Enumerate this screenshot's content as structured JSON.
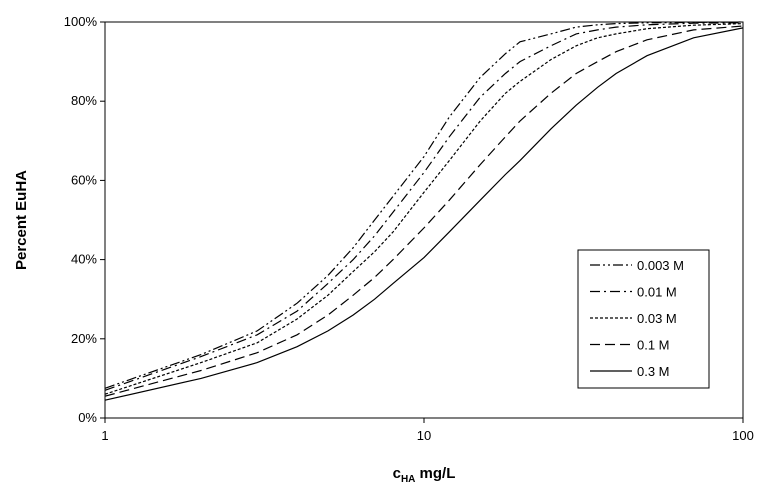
{
  "chart_data": {
    "type": "line",
    "title": "",
    "xlabel": {
      "main": "c",
      "sub": "HA",
      "rest": " mg/L"
    },
    "ylabel": "Percent EuHA",
    "x_scale": "log",
    "xlim": [
      1,
      100
    ],
    "ylim": [
      0,
      100
    ],
    "x_ticks": [
      1,
      10,
      100
    ],
    "x_tick_labels": [
      "1",
      "10",
      "100"
    ],
    "y_ticks": [
      0,
      20,
      40,
      60,
      80,
      100
    ],
    "y_tick_labels": [
      "0%",
      "20%",
      "40%",
      "60%",
      "80%",
      "100%"
    ],
    "grid": false,
    "legend_position": "center-right",
    "series": [
      {
        "name": "0.003 M",
        "dash": "dash-dot-dot",
        "x": [
          1,
          2,
          3,
          4,
          5,
          6,
          7,
          8,
          10,
          12,
          15,
          18,
          20,
          25,
          30,
          35,
          40,
          50,
          70,
          100
        ],
        "y": [
          7.5,
          16,
          22,
          29,
          36,
          43,
          50,
          56,
          66,
          76,
          86,
          92,
          95,
          97,
          98.7,
          99.3,
          99.6,
          99.8,
          99.9,
          100
        ]
      },
      {
        "name": "0.01 M",
        "dash": "dash-dot",
        "x": [
          1,
          2,
          3,
          4,
          5,
          6,
          7,
          8,
          10,
          12,
          15,
          18,
          20,
          25,
          30,
          35,
          40,
          50,
          70,
          100
        ],
        "y": [
          7,
          15.5,
          21,
          27,
          34,
          40,
          46,
          52,
          62,
          71,
          81,
          87,
          90,
          94,
          97,
          98,
          98.7,
          99.3,
          99.7,
          99.8
        ]
      },
      {
        "name": "0.03 M",
        "dash": "dot",
        "x": [
          1,
          2,
          3,
          4,
          5,
          6,
          7,
          8,
          10,
          12,
          15,
          18,
          20,
          25,
          30,
          35,
          40,
          50,
          70,
          100
        ],
        "y": [
          6,
          14,
          19,
          25,
          31,
          37,
          42,
          47,
          57,
          65,
          75,
          82,
          85,
          90.5,
          94,
          96,
          97,
          98.3,
          99.2,
          99.6
        ]
      },
      {
        "name": "0.1 M",
        "dash": "dash",
        "x": [
          1,
          2,
          3,
          4,
          5,
          6,
          7,
          8,
          10,
          12,
          15,
          18,
          20,
          25,
          30,
          35,
          40,
          50,
          70,
          100
        ],
        "y": [
          5.5,
          12,
          16.5,
          21,
          26,
          31,
          35.5,
          40,
          48,
          55,
          64,
          71,
          75,
          82,
          87,
          90,
          92.5,
          95.5,
          98,
          99
        ]
      },
      {
        "name": "0.3 M",
        "dash": "solid",
        "x": [
          1,
          2,
          3,
          4,
          5,
          6,
          7,
          8,
          10,
          12,
          15,
          18,
          20,
          25,
          30,
          35,
          40,
          50,
          70,
          100
        ],
        "y": [
          4.5,
          10,
          14,
          18,
          22,
          26,
          30,
          34,
          40.5,
          47,
          55,
          61.5,
          65,
          73,
          79,
          83.5,
          87,
          91.5,
          96,
          98.5
        ]
      }
    ]
  }
}
